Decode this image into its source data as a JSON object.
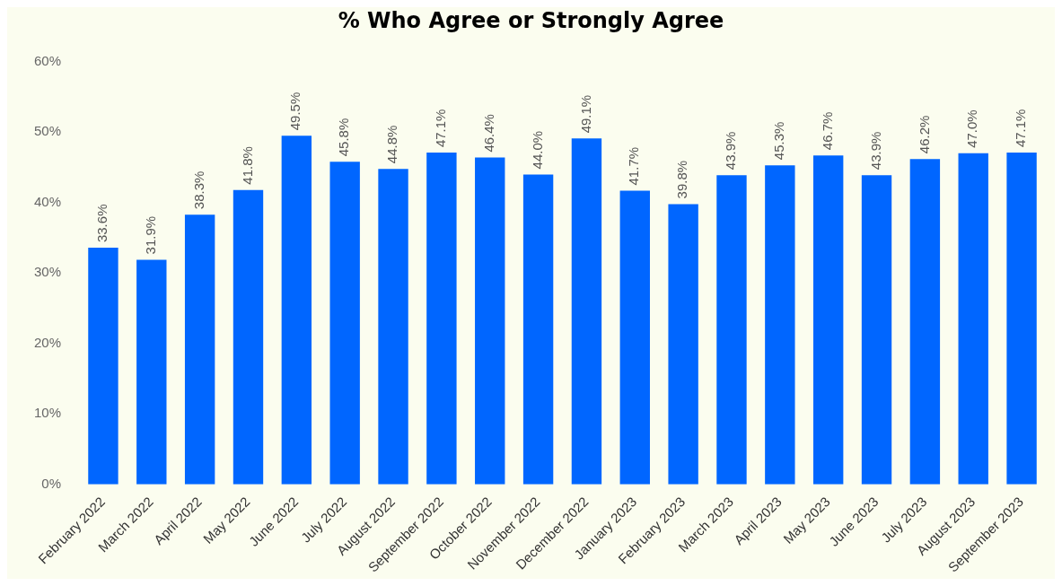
{
  "chart_data": {
    "type": "bar",
    "title": "% Who Agree or Strongly Agree",
    "categories": [
      "February 2022",
      "March 2022",
      "April 2022",
      "May 2022",
      "June 2022",
      "July 2022",
      "August 2022",
      "September 2022",
      "October 2022",
      "November 2022",
      "December 2022",
      "January 2023",
      "February 2023",
      "March 2023",
      "April 2023",
      "May 2023",
      "June 2023",
      "July 2023",
      "August 2023",
      "September 2023"
    ],
    "values": [
      33.6,
      31.9,
      38.3,
      41.8,
      49.5,
      45.8,
      44.8,
      47.1,
      46.4,
      44.0,
      49.1,
      41.7,
      39.8,
      43.9,
      45.3,
      46.7,
      43.9,
      46.2,
      47.0,
      47.1
    ],
    "value_labels": [
      "33.6%",
      "31.9%",
      "38.3%",
      "41.8%",
      "49.5%",
      "45.8%",
      "44.8%",
      "47.1%",
      "46.4%",
      "44.0%",
      "49.1%",
      "41.7%",
      "39.8%",
      "43.9%",
      "45.3%",
      "46.7%",
      "43.9%",
      "46.2%",
      "47.0%",
      "47.1%"
    ],
    "color": "#0066ff",
    "ylim": [
      0,
      60
    ],
    "yticks": [
      {
        "value": 0,
        "label": "0%"
      },
      {
        "value": 10,
        "label": "10%"
      },
      {
        "value": 20,
        "label": "20%"
      },
      {
        "value": 30,
        "label": "30%"
      },
      {
        "value": 40,
        "label": "40%"
      },
      {
        "value": 50,
        "label": "50%"
      },
      {
        "value": 60,
        "label": "60%"
      }
    ],
    "grid": false,
    "legend": false
  }
}
